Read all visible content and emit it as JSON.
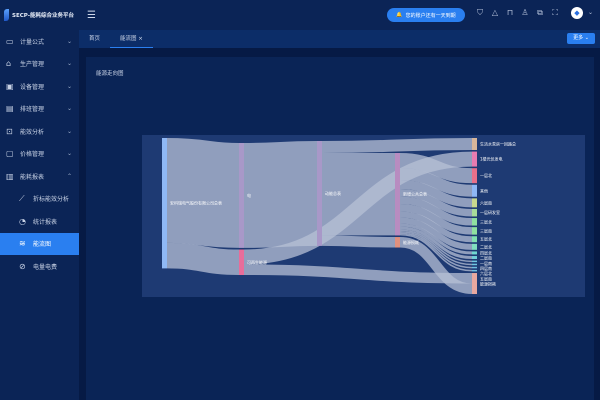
{
  "app": {
    "title": "SECP-能耗综合业务平台"
  },
  "sidebar": {
    "items": [
      {
        "label": "计量公式",
        "icon": "monitor-icon",
        "chevron": "⌄"
      },
      {
        "label": "生产管理",
        "icon": "factory-icon",
        "chevron": "⌄"
      },
      {
        "label": "设备管理",
        "icon": "device-icon",
        "chevron": "⌄"
      },
      {
        "label": "排班管理",
        "icon": "schedule-icon",
        "chevron": "⌄"
      },
      {
        "label": "能效分析",
        "icon": "chart-screen-icon",
        "chevron": "⌄"
      },
      {
        "label": "价格管理",
        "icon": "folder-icon",
        "chevron": "⌄"
      },
      {
        "label": "能耗报表",
        "icon": "bar-chart-icon",
        "chevron": "⌃"
      }
    ],
    "subitems": [
      {
        "label": "折标能效分析",
        "icon": "line-chart-icon"
      },
      {
        "label": "统计报表",
        "icon": "pie-chart-icon"
      },
      {
        "label": "能流图",
        "icon": "flow-icon",
        "active": true
      },
      {
        "label": "电量电费",
        "icon": "power-icon"
      }
    ]
  },
  "header": {
    "menu_icon": "☰",
    "notice": "您的账户还有一天到期",
    "icons": [
      "shield-icon",
      "warning-icon",
      "lock-icon",
      "shirt-icon",
      "translate-icon",
      "fullscreen-icon"
    ],
    "avatar_glyph": "◆",
    "dropdown": "⌄"
  },
  "tabs": [
    {
      "label": "首页"
    },
    {
      "label": "能流图",
      "close": "×"
    }
  ],
  "more_label": "更多 ⌄",
  "panel": {
    "title": "能源走向图"
  },
  "colors": {
    "accent": "#2a7ff0",
    "chart_bg": "#1e3a73",
    "link": "#b7c0d6"
  },
  "chart_data": {
    "type": "sankey",
    "nodes": [
      {
        "name": "安科瑞电气股份有限公司总表",
        "col": 0,
        "color": "#8fb8f5"
      },
      {
        "name": "电",
        "col": 1,
        "color": "#a898c8"
      },
      {
        "name": "可再生能源",
        "col": 1,
        "color": "#e86d9a"
      },
      {
        "name": "动能总表",
        "col": 2,
        "color": "#a898c8"
      },
      {
        "name": "新增公共总表",
        "col": 3,
        "color": "#b88cc0"
      },
      {
        "name": "能源损耗",
        "col": 3,
        "color": "#e0907e"
      },
      {
        "name": "生活水泵房一回路总",
        "col": 4,
        "color": "#d8b69a"
      },
      {
        "name": "1楼光伏发电",
        "col": 4,
        "color": "#e87bb0"
      },
      {
        "name": "一层北",
        "col": 4,
        "color": "#e8708a"
      },
      {
        "name": "其他",
        "col": 4,
        "color": "#8fb8f5"
      },
      {
        "name": "六层南",
        "col": 4,
        "color": "#c8d88e"
      },
      {
        "name": "一层研发室",
        "col": 4,
        "color": "#a8dc9a"
      },
      {
        "name": "三层北",
        "col": 4,
        "color": "#8fe0a0"
      },
      {
        "name": "三层南",
        "col": 4,
        "color": "#8fe0a0"
      },
      {
        "name": "五层北",
        "col": 4,
        "color": "#80e0b0"
      },
      {
        "name": "二层北",
        "col": 4,
        "color": "#80e0c0"
      },
      {
        "name": "四层北",
        "col": 4,
        "color": "#70d8d0"
      },
      {
        "name": "二层南",
        "col": 4,
        "color": "#70d0d8"
      },
      {
        "name": "一层南",
        "col": 4,
        "color": "#70c8e0"
      },
      {
        "name": "四层南",
        "col": 4,
        "color": "#70c8e0"
      },
      {
        "name": "六层北",
        "col": 4,
        "color": "#70c0e0"
      },
      {
        "name": "五层南",
        "col": 4,
        "color": "#70c0e0"
      },
      {
        "name": "能源损耗",
        "col": 4,
        "color": "#e8a8a0"
      }
    ],
    "links": [
      [
        0,
        1,
        70
      ],
      [
        0,
        2,
        17
      ],
      [
        1,
        3,
        70
      ],
      [
        3,
        6,
        8
      ],
      [
        3,
        4,
        55
      ],
      [
        3,
        5,
        7
      ],
      [
        2,
        7,
        10
      ],
      [
        2,
        22,
        7
      ],
      [
        5,
        22,
        7
      ],
      [
        4,
        8,
        10
      ],
      [
        4,
        9,
        8
      ],
      [
        4,
        10,
        6
      ],
      [
        4,
        11,
        5
      ],
      [
        4,
        12,
        5
      ],
      [
        4,
        13,
        5
      ],
      [
        4,
        14,
        4
      ],
      [
        4,
        15,
        4
      ],
      [
        4,
        16,
        2
      ],
      [
        4,
        17,
        2
      ],
      [
        4,
        18,
        1
      ],
      [
        4,
        19,
        1
      ],
      [
        4,
        20,
        1
      ],
      [
        4,
        21,
        1
      ]
    ]
  }
}
